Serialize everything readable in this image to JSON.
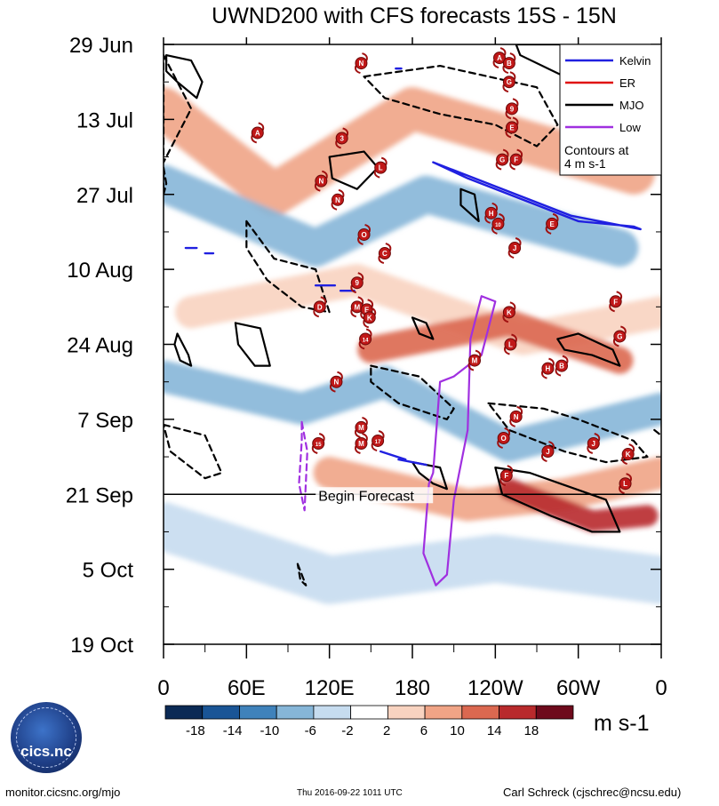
{
  "chart_data": {
    "type": "heatmap",
    "title": "UWND200 with CFS forecasts  15S - 15N",
    "variable": "200-hPa zonal wind anomaly",
    "y_axis": {
      "ticks": [
        "29 Jun",
        "13 Jul",
        "27 Jul",
        "10 Aug",
        "24 Aug",
        "7 Sep",
        "21 Sep",
        "5 Oct",
        "19 Oct"
      ],
      "range_days": [
        0,
        112
      ],
      "major_step_days": 14
    },
    "x_axis": {
      "ticks": [
        "0",
        "60E",
        "120E",
        "180",
        "120W",
        "60W",
        "0"
      ],
      "tick_lons": [
        0,
        60,
        120,
        180,
        240,
        300,
        360
      ],
      "range": [
        0,
        360
      ]
    },
    "forecast_line": {
      "label": "Begin Forecast",
      "day": 84
    },
    "legend": {
      "placement": "top-right",
      "entries": [
        {
          "name": "Kelvin",
          "color": "#2020e0"
        },
        {
          "name": "ER",
          "color": "#e01010"
        },
        {
          "name": "MJO",
          "color": "#000000"
        },
        {
          "name": "Low",
          "color": "#a030e0"
        }
      ],
      "note_lines": [
        "Contours at",
        "4 m s-1"
      ]
    },
    "colorbar": {
      "unit": "m s-1",
      "labels": [
        "-18",
        "-14",
        "-10",
        "-6",
        "-2",
        "2",
        "6",
        "10",
        "14",
        "18"
      ],
      "colors": [
        "#0b2a55",
        "#1a5596",
        "#3f82bb",
        "#86b6d8",
        "#c6dcef",
        "#ffffff",
        "#f8d3c0",
        "#f0a486",
        "#db6850",
        "#b82a2c",
        "#6e0a1c"
      ]
    },
    "anomaly_bands": [
      {
        "sign": "positive",
        "points": [
          [
            0,
            12
          ],
          [
            80,
            28
          ],
          [
            180,
            12
          ],
          [
            340,
            24
          ]
        ],
        "width_days": 8,
        "level": 2
      },
      {
        "sign": "negative",
        "points": [
          [
            0,
            26
          ],
          [
            110,
            38
          ],
          [
            190,
            28
          ],
          [
            330,
            38
          ]
        ],
        "width_days": 7,
        "level": 2
      },
      {
        "sign": "positive",
        "points": [
          [
            20,
            50
          ],
          [
            140,
            44
          ],
          [
            260,
            55
          ],
          [
            360,
            50
          ]
        ],
        "width_days": 6,
        "level": 1
      },
      {
        "sign": "positive",
        "points": [
          [
            150,
            57
          ],
          [
            250,
            52
          ],
          [
            330,
            59
          ]
        ],
        "width_days": 5,
        "level": 3
      },
      {
        "sign": "negative",
        "points": [
          [
            0,
            62
          ],
          [
            100,
            68
          ],
          [
            160,
            63
          ],
          [
            250,
            75
          ],
          [
            360,
            68
          ]
        ],
        "width_days": 6,
        "level": 2
      },
      {
        "sign": "positive",
        "points": [
          [
            120,
            80
          ],
          [
            220,
            86
          ],
          [
            290,
            84
          ],
          [
            360,
            80
          ]
        ],
        "width_days": 6,
        "level": 2
      },
      {
        "sign": "positive",
        "points": [
          [
            250,
            83
          ],
          [
            310,
            89
          ],
          [
            350,
            88
          ]
        ],
        "width_days": 4,
        "level": 4
      },
      {
        "sign": "negative",
        "points": [
          [
            0,
            90
          ],
          [
            120,
            100
          ],
          [
            240,
            96
          ],
          [
            360,
            100
          ]
        ],
        "width_days": 9,
        "level": 1
      }
    ],
    "kelvin_contours": [
      {
        "points": [
          [
            195,
            22
          ],
          [
            220,
            25
          ],
          [
            300,
            33
          ],
          [
            340,
            34
          ],
          [
            345,
            34.5
          ],
          [
            335,
            34
          ],
          [
            295,
            32
          ],
          [
            215,
            24
          ]
        ],
        "dashed": false
      },
      {
        "points": [
          [
            168,
            4.5
          ],
          [
            172,
            4.5
          ]
        ],
        "dashed": false
      },
      {
        "points": [
          [
            16,
            38
          ],
          [
            24,
            38
          ]
        ],
        "dashed": false
      },
      {
        "points": [
          [
            30,
            39
          ],
          [
            36,
            39
          ]
        ],
        "dashed": false
      },
      {
        "points": [
          [
            110,
            45
          ],
          [
            124,
            45
          ]
        ],
        "dashed": false
      },
      {
        "points": [
          [
            128,
            46
          ],
          [
            138,
            46
          ]
        ],
        "dashed": false
      },
      {
        "points": [
          [
            157,
            76
          ],
          [
            175,
            77.5
          ]
        ],
        "dashed": false
      },
      {
        "points": [
          [
            170,
            77.5
          ],
          [
            190,
            78.5
          ]
        ],
        "dashed": false
      }
    ],
    "mjo_contours": [
      {
        "points": [
          [
            2,
            2
          ],
          [
            20,
            3
          ],
          [
            28,
            7
          ],
          [
            24,
            10
          ],
          [
            10,
            7
          ],
          [
            2,
            5
          ]
        ],
        "dashed": false
      },
      {
        "points": [
          [
            255,
            0
          ],
          [
            300,
            0
          ],
          [
            310,
            2
          ],
          [
            290,
            6
          ],
          [
            258,
            2
          ]
        ],
        "dashed": false
      },
      {
        "points": [
          [
            120,
            21
          ],
          [
            145,
            20
          ],
          [
            155,
            23
          ],
          [
            140,
            27
          ],
          [
            122,
            25
          ]
        ],
        "dashed": false
      },
      {
        "points": [
          [
            215,
            27
          ],
          [
            225,
            28
          ],
          [
            228,
            33
          ],
          [
            215,
            30
          ]
        ],
        "dashed": false
      },
      {
        "points": [
          [
            10,
            54
          ],
          [
            18,
            58
          ],
          [
            20,
            60
          ],
          [
            12,
            59
          ],
          [
            8,
            56
          ]
        ],
        "dashed": false
      },
      {
        "points": [
          [
            52,
            52
          ],
          [
            70,
            53
          ],
          [
            77,
            60
          ],
          [
            66,
            60
          ],
          [
            54,
            56
          ]
        ],
        "dashed": false
      },
      {
        "points": [
          [
            180,
            51
          ],
          [
            190,
            52
          ],
          [
            195,
            55
          ],
          [
            185,
            54
          ]
        ],
        "dashed": false
      },
      {
        "points": [
          [
            285,
            55
          ],
          [
            300,
            54
          ],
          [
            325,
            57
          ],
          [
            330,
            60
          ],
          [
            310,
            58
          ],
          [
            290,
            57
          ]
        ],
        "dashed": false
      },
      {
        "points": [
          [
            180,
            78
          ],
          [
            200,
            79
          ],
          [
            205,
            83
          ],
          [
            195,
            82
          ],
          [
            185,
            80
          ]
        ],
        "dashed": false
      },
      {
        "points": [
          [
            240,
            79
          ],
          [
            265,
            80
          ],
          [
            320,
            85
          ],
          [
            330,
            91
          ],
          [
            310,
            91
          ],
          [
            280,
            88
          ],
          [
            245,
            84
          ]
        ],
        "dashed": false
      },
      {
        "points": [
          [
            0,
            2
          ],
          [
            20,
            12
          ],
          [
            0,
            22
          ]
        ],
        "dashed": true
      },
      {
        "points": [
          [
            145,
            6
          ],
          [
            200,
            4
          ],
          [
            270,
            8
          ],
          [
            285,
            15
          ],
          [
            270,
            19
          ],
          [
            240,
            15
          ],
          [
            200,
            13
          ],
          [
            160,
            10
          ]
        ],
        "dashed": true
      },
      {
        "points": [
          [
            0,
            23
          ],
          [
            2,
            26
          ],
          [
            0,
            28
          ]
        ],
        "dashed": true
      },
      {
        "points": [
          [
            60,
            33
          ],
          [
            80,
            40
          ],
          [
            110,
            42
          ],
          [
            120,
            50
          ],
          [
            100,
            49
          ],
          [
            75,
            44
          ],
          [
            60,
            38
          ]
        ],
        "dashed": true
      },
      {
        "points": [
          [
            150,
            60
          ],
          [
            185,
            62
          ],
          [
            210,
            68
          ],
          [
            205,
            70
          ],
          [
            170,
            67
          ],
          [
            150,
            63
          ]
        ],
        "dashed": true
      },
      {
        "points": [
          [
            0,
            71
          ],
          [
            30,
            73
          ],
          [
            42,
            80
          ],
          [
            30,
            81
          ],
          [
            5,
            76
          ]
        ],
        "dashed": true
      },
      {
        "points": [
          [
            235,
            67
          ],
          [
            275,
            68
          ],
          [
            300,
            70
          ],
          [
            340,
            74
          ],
          [
            350,
            77
          ],
          [
            320,
            78
          ],
          [
            290,
            76
          ],
          [
            250,
            72
          ]
        ],
        "dashed": true
      },
      {
        "points": [
          [
            355,
            72
          ],
          [
            360,
            73
          ]
        ],
        "dashed": true
      },
      {
        "points": [
          [
            97,
            97
          ],
          [
            103,
            101
          ],
          [
            99,
            100
          ]
        ],
        "dashed": true
      }
    ],
    "low_contours": [
      {
        "points": [
          [
            195,
            80
          ],
          [
            200,
            63
          ],
          [
            210,
            62
          ],
          [
            230,
            58
          ],
          [
            240,
            48
          ],
          [
            230,
            47
          ],
          [
            222,
            55
          ],
          [
            220,
            72
          ],
          [
            210,
            85
          ],
          [
            205,
            99
          ],
          [
            197,
            101
          ],
          [
            188,
            95
          ],
          [
            192,
            82
          ]
        ],
        "dashed": false
      },
      {
        "points": [
          [
            100,
            70.5
          ],
          [
            104,
            76
          ],
          [
            102,
            87
          ],
          [
            98,
            82
          ],
          [
            100,
            74
          ]
        ],
        "dashed": true
      }
    ],
    "storm_markers": [
      {
        "label": "N",
        "lon": 143,
        "day": 3.5
      },
      {
        "label": "A",
        "lon": 243,
        "day": 2.5
      },
      {
        "label": "B",
        "lon": 250,
        "day": 3.5
      },
      {
        "label": "G",
        "lon": 250,
        "day": 7
      },
      {
        "label": "9",
        "lon": 252,
        "day": 12
      },
      {
        "label": "E",
        "lon": 252,
        "day": 15.5
      },
      {
        "label": "G",
        "lon": 245,
        "day": 21.5
      },
      {
        "label": "F",
        "lon": 255,
        "day": 21.5
      },
      {
        "label": "A",
        "lon": 68,
        "day": 16.5
      },
      {
        "label": "3",
        "lon": 129,
        "day": 17.5
      },
      {
        "label": "L",
        "lon": 157,
        "day": 23
      },
      {
        "label": "N",
        "lon": 114,
        "day": 25.5
      },
      {
        "label": "N",
        "lon": 126,
        "day": 29
      },
      {
        "label": "H",
        "lon": 237,
        "day": 31.5
      },
      {
        "label": "10",
        "lon": 242,
        "day": 33.5
      },
      {
        "label": "E",
        "lon": 281,
        "day": 33.5
      },
      {
        "label": "O",
        "lon": 145,
        "day": 35.5
      },
      {
        "label": "J",
        "lon": 254,
        "day": 38
      },
      {
        "label": "C",
        "lon": 160,
        "day": 39
      },
      {
        "label": "9",
        "lon": 140,
        "day": 44.5
      },
      {
        "label": "D",
        "lon": 113,
        "day": 49
      },
      {
        "label": "M",
        "lon": 140,
        "day": 49
      },
      {
        "label": "E",
        "lon": 147,
        "day": 49.5
      },
      {
        "label": "K",
        "lon": 149,
        "day": 51
      },
      {
        "label": "K",
        "lon": 250,
        "day": 50
      },
      {
        "label": "F",
        "lon": 327,
        "day": 48
      },
      {
        "label": "G",
        "lon": 330,
        "day": 54.5
      },
      {
        "label": "14",
        "lon": 146,
        "day": 55
      },
      {
        "label": "L",
        "lon": 251,
        "day": 56
      },
      {
        "label": "M",
        "lon": 225,
        "day": 59
      },
      {
        "label": "H",
        "lon": 278,
        "day": 60.5
      },
      {
        "label": "B",
        "lon": 288,
        "day": 60
      },
      {
        "label": "N",
        "lon": 125,
        "day": 63
      },
      {
        "label": "N",
        "lon": 255,
        "day": 69.5
      },
      {
        "label": "M",
        "lon": 143,
        "day": 71.5
      },
      {
        "label": "O",
        "lon": 246,
        "day": 73.5
      },
      {
        "label": "15",
        "lon": 112,
        "day": 74.5
      },
      {
        "label": "M",
        "lon": 143,
        "day": 74.5
      },
      {
        "label": "17",
        "lon": 155,
        "day": 74
      },
      {
        "label": "J",
        "lon": 278,
        "day": 76
      },
      {
        "label": "J",
        "lon": 311,
        "day": 74.5
      },
      {
        "label": "K",
        "lon": 336,
        "day": 76.5
      },
      {
        "label": "F",
        "lon": 248,
        "day": 80.5
      },
      {
        "label": "L",
        "lon": 334,
        "day": 82
      }
    ]
  },
  "footer": {
    "logo_text": "cics.nc",
    "website": "monitor.cicsnc.org/mjo",
    "timestamp": "Thu 2016-09-22 1011 UTC",
    "author": "Carl Schreck (cjschrec@ncsu.edu)"
  }
}
